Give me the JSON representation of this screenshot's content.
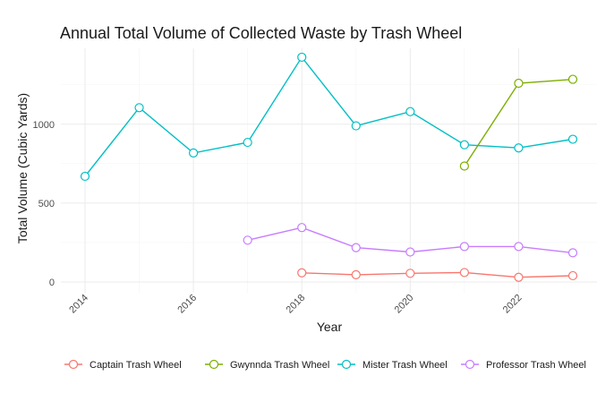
{
  "chart_data": {
    "type": "line",
    "title": "Annual Total Volume of Collected Waste by Trash Wheel",
    "xlabel": "Year",
    "ylabel": "Total Volume (Cubic Yards)",
    "xlim": [
      2014,
      2023
    ],
    "ylim": [
      0,
      1430
    ],
    "x_ticks": [
      2014,
      2016,
      2018,
      2020,
      2022
    ],
    "y_ticks": [
      0,
      500,
      1000
    ],
    "grid": true,
    "legend_position": "bottom",
    "series": [
      {
        "name": "Captain Trash Wheel",
        "color": "#F8766D",
        "points": [
          [
            2018,
            58
          ],
          [
            2019,
            46
          ],
          [
            2020,
            55
          ],
          [
            2021,
            60
          ],
          [
            2022,
            30
          ],
          [
            2023,
            40
          ]
        ]
      },
      {
        "name": "Gwynnda Trash Wheel",
        "color": "#7CAE00",
        "points": [
          [
            2021,
            735
          ],
          [
            2022,
            1260
          ],
          [
            2023,
            1285
          ]
        ]
      },
      {
        "name": "Mister Trash Wheel",
        "color": "#00BFC4",
        "points": [
          [
            2014,
            670
          ],
          [
            2015,
            1105
          ],
          [
            2016,
            818
          ],
          [
            2017,
            885
          ],
          [
            2018,
            1425
          ],
          [
            2019,
            990
          ],
          [
            2020,
            1080
          ],
          [
            2021,
            870
          ],
          [
            2022,
            850
          ],
          [
            2023,
            905
          ]
        ]
      },
      {
        "name": "Professor Trash Wheel",
        "color": "#C77CFF",
        "points": [
          [
            2017,
            265
          ],
          [
            2018,
            345
          ],
          [
            2019,
            218
          ],
          [
            2020,
            190
          ],
          [
            2021,
            225
          ],
          [
            2022,
            225
          ],
          [
            2023,
            185
          ]
        ]
      }
    ]
  }
}
